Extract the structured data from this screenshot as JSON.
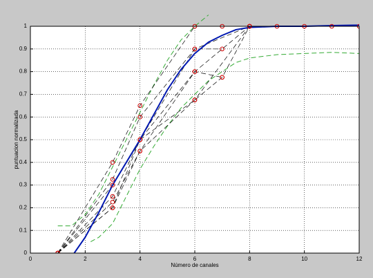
{
  "chart_data": {
    "type": "line",
    "xlabel": "Número de canales",
    "ylabel": "puntuacion normalizada",
    "xlim": [
      0,
      12
    ],
    "xticks": [
      0,
      2,
      4,
      6,
      8,
      10,
      12
    ],
    "ylim": [
      0,
      1
    ],
    "yticks": [
      0,
      0.1,
      0.2,
      0.3,
      0.4,
      0.5,
      0.6,
      0.7,
      0.8,
      0.9,
      1
    ],
    "grid": true,
    "series": [
      {
        "color": "#000000",
        "marker_color": "#cc0000",
        "x": [
          1,
          3,
          4,
          6,
          7,
          8,
          9,
          10,
          11,
          12
        ],
        "values": [
          0,
          0.4,
          0.65,
          1,
          1,
          1,
          1,
          1,
          1,
          1
        ]
      },
      {
        "color": "#000000",
        "marker_color": "#cc0000",
        "x": [
          1,
          3,
          4,
          6,
          7
        ],
        "values": [
          0,
          0.325,
          0.6,
          0.9,
          0.9
        ]
      },
      {
        "color": "#000000",
        "marker_color": "#cc0000",
        "x": [
          1,
          3,
          4,
          6,
          8
        ],
        "values": [
          0,
          0.3,
          0.5,
          0.9,
          1
        ]
      },
      {
        "color": "#000000",
        "marker_color": "#cc0000",
        "x": [
          1,
          3,
          4,
          6,
          8
        ],
        "values": [
          0,
          0.25,
          0.5,
          0.8,
          1
        ]
      },
      {
        "color": "#000000",
        "marker_color": "#cc0000",
        "x": [
          1,
          3,
          4,
          6,
          7
        ],
        "values": [
          0,
          0.225,
          0.45,
          0.8,
          0.775
        ]
      },
      {
        "color": "#000000",
        "marker_color": "#cc0000",
        "x": [
          1,
          3,
          4,
          6,
          8
        ],
        "values": [
          0,
          0.2,
          0.45,
          0.675,
          1
        ]
      },
      {
        "color": "#000000",
        "marker_color": "#cc0000",
        "x": [
          1,
          3,
          4,
          6,
          7,
          8
        ],
        "values": [
          0,
          0.2,
          0.5,
          0.675,
          0.775,
          1
        ]
      }
    ],
    "fit": {
      "color": "#0018b0",
      "x": [
        1.6,
        2,
        2.5,
        3,
        3.5,
        4,
        4.5,
        5,
        5.5,
        6,
        6.5,
        7,
        7.5,
        8,
        9,
        10,
        11,
        12
      ],
      "values": [
        0,
        0.07,
        0.18,
        0.3,
        0.4,
        0.5,
        0.61,
        0.72,
        0.81,
        0.88,
        0.93,
        0.96,
        0.985,
        0.995,
        1,
        1,
        1.003,
        1.005
      ]
    },
    "bands": [
      {
        "color": "#33aa33",
        "x": [
          1,
          1.5,
          2,
          2.5,
          3,
          3.5,
          4,
          4.5,
          5,
          5.5,
          6,
          6.5
        ],
        "values": [
          0.12,
          0.12,
          0.17,
          0.26,
          0.38,
          0.5,
          0.62,
          0.74,
          0.85,
          0.94,
          1,
          1.05
        ]
      },
      {
        "color": "#33aa33",
        "x": [
          2.2,
          2.5,
          3,
          3.5,
          4,
          4.5,
          5,
          5.5,
          6,
          6.5,
          7,
          7.5,
          8,
          9,
          10,
          11,
          12
        ],
        "values": [
          0.05,
          0.07,
          0.13,
          0.25,
          0.37,
          0.47,
          0.56,
          0.64,
          0.7,
          0.76,
          0.8,
          0.84,
          0.86,
          0.875,
          0.88,
          0.885,
          0.88
        ]
      }
    ]
  }
}
